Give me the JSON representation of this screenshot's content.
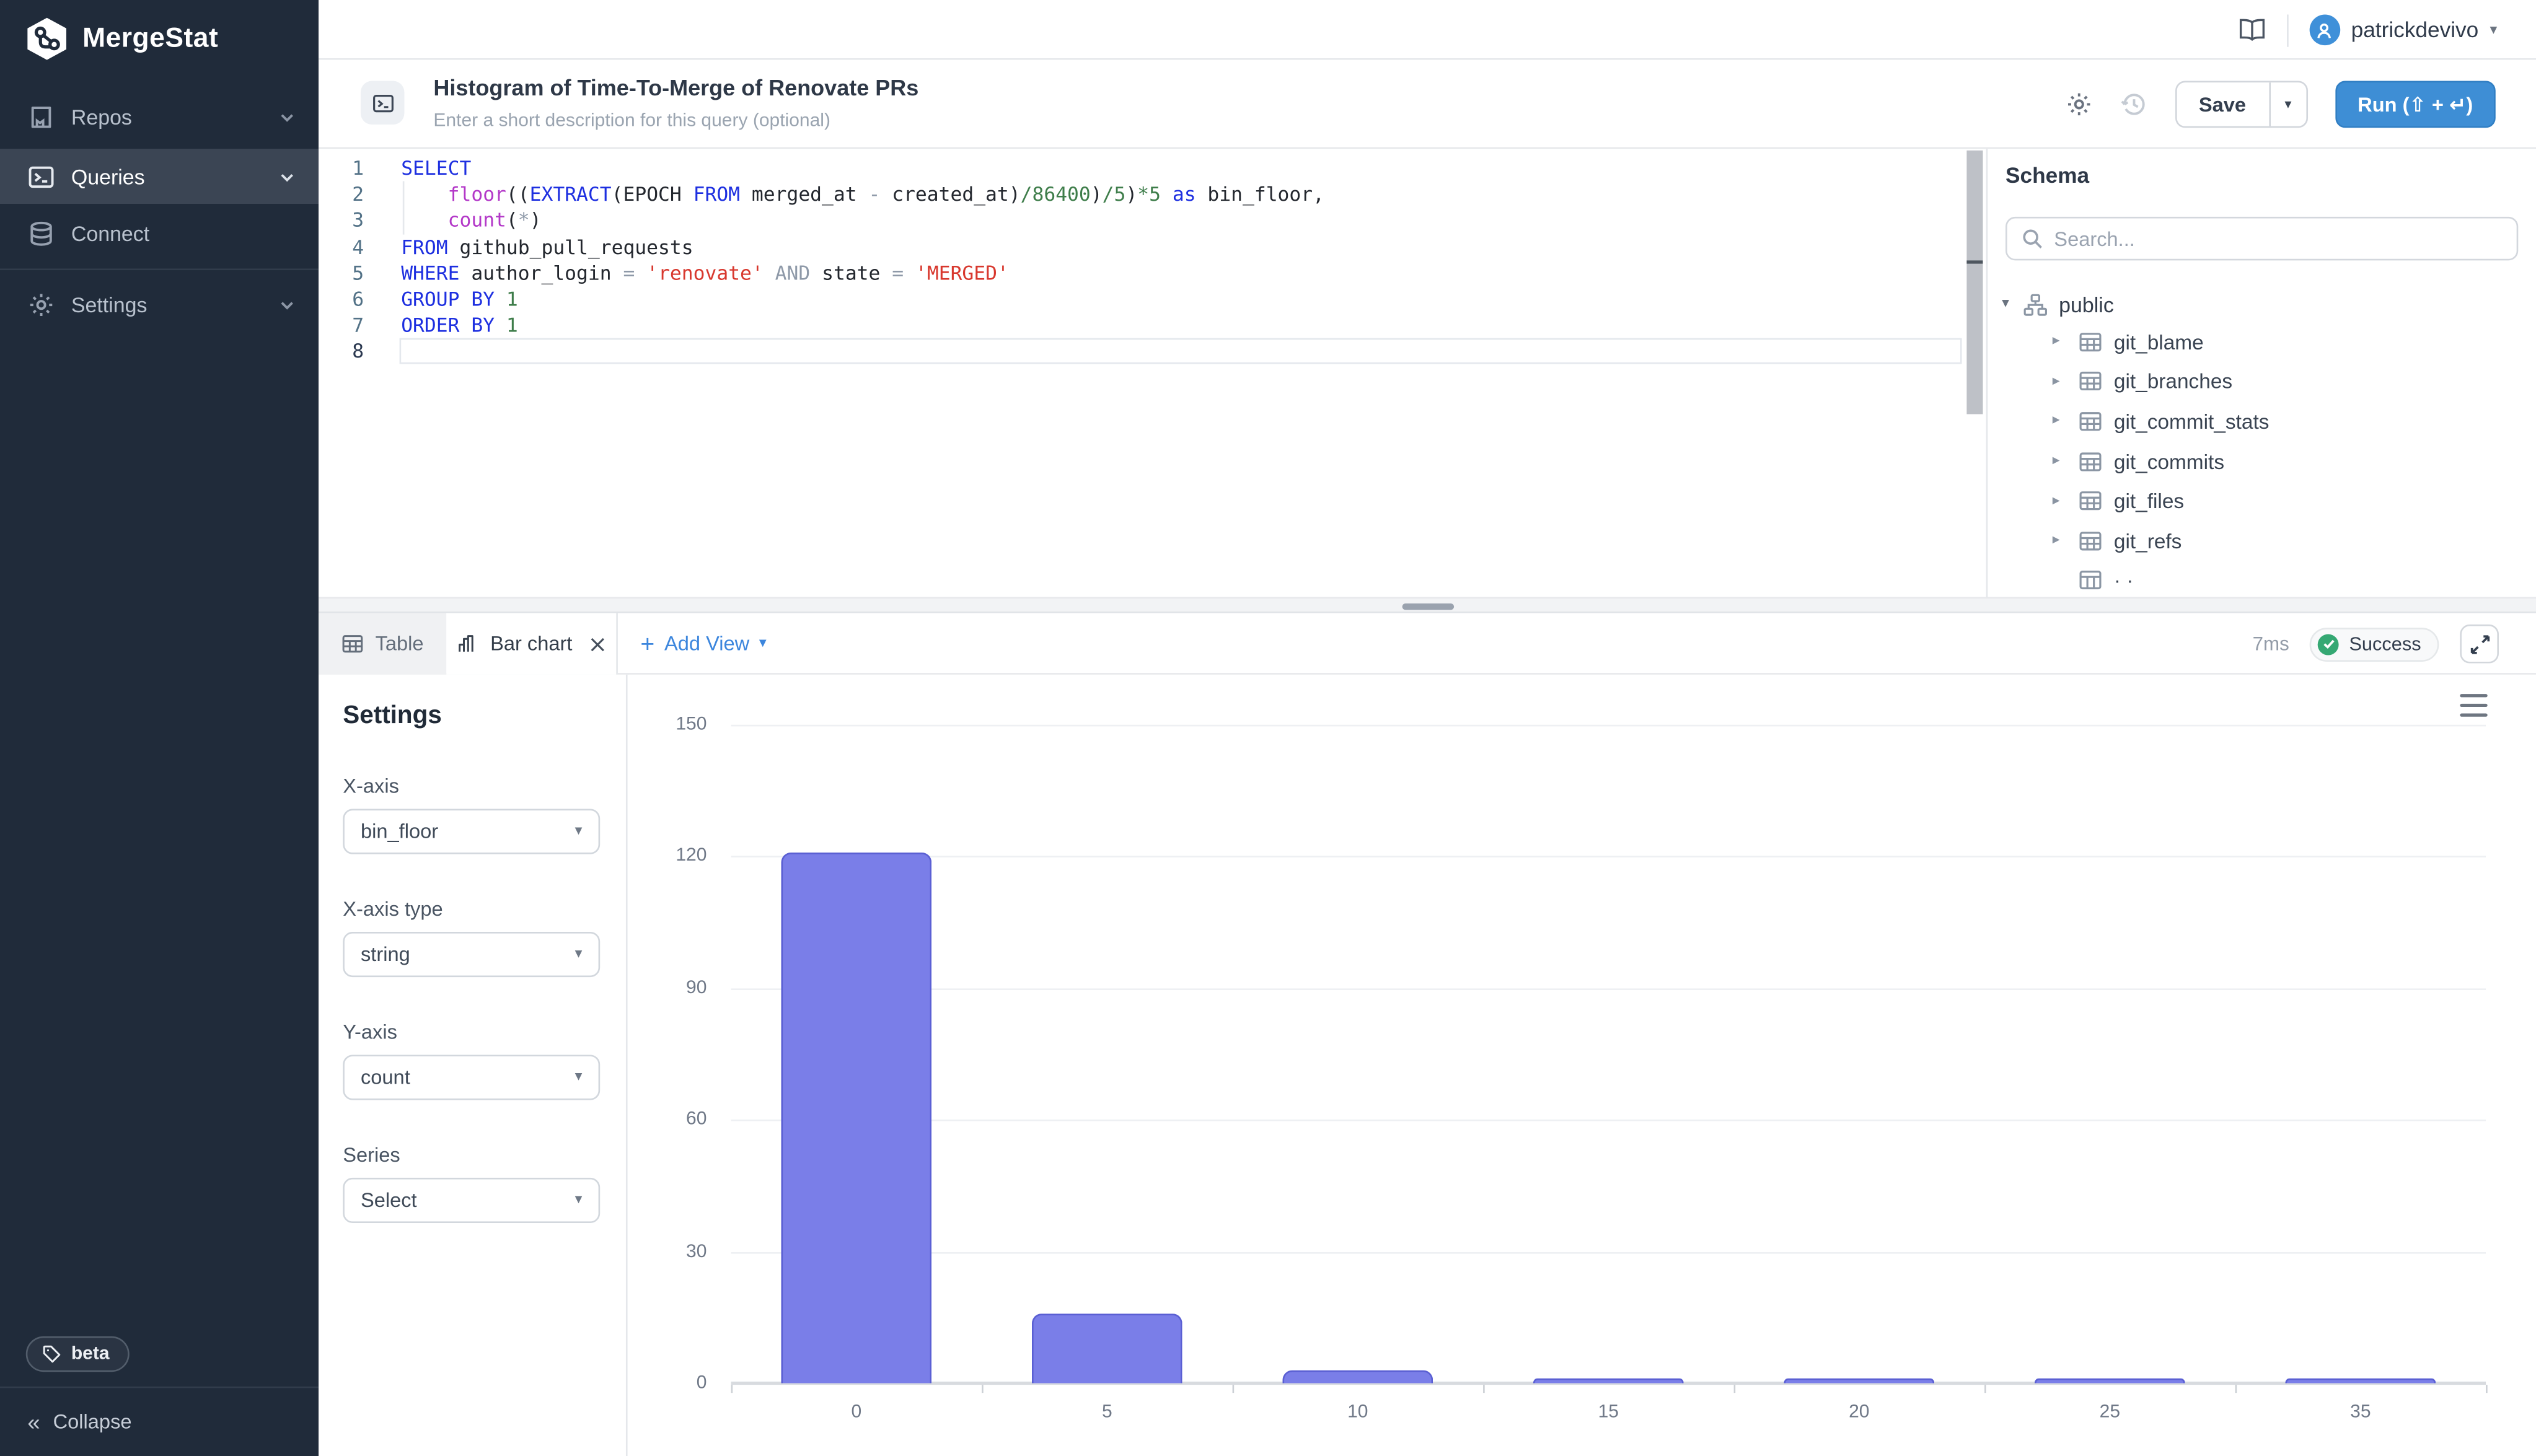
{
  "app": {
    "name": "MergeStat"
  },
  "sidebar": {
    "items": [
      {
        "label": "Repos",
        "icon": "repo-book-icon",
        "expandable": true,
        "active": false
      },
      {
        "label": "Queries",
        "icon": "terminal-icon",
        "expandable": true,
        "active": true
      },
      {
        "label": "Connect",
        "icon": "database-icon",
        "expandable": false,
        "active": false
      },
      {
        "label": "Settings",
        "icon": "gear-icon",
        "expandable": true,
        "active": false
      }
    ],
    "beta_label": "beta",
    "collapse_label": "Collapse",
    "collapse_glyph": "«"
  },
  "topbar": {
    "user_name": "patrickdevivo"
  },
  "query_header": {
    "title": "Histogram of Time-To-Merge of Renovate PRs",
    "description_placeholder": "Enter a short description for this query (optional)",
    "save_label": "Save",
    "run_label": "Run (⇧ + ↵)"
  },
  "editor": {
    "lines": [
      {
        "tokens": [
          {
            "c": "kw",
            "t": "SELECT"
          }
        ]
      },
      {
        "tokens": [
          {
            "c": "plain",
            "t": "    "
          },
          {
            "c": "fn",
            "t": "floor"
          },
          {
            "c": "plain",
            "t": "(("
          },
          {
            "c": "kw",
            "t": "EXTRACT"
          },
          {
            "c": "plain",
            "t": "(EPOCH "
          },
          {
            "c": "kw",
            "t": "FROM"
          },
          {
            "c": "plain",
            "t": " merged_at "
          },
          {
            "c": "op",
            "t": "-"
          },
          {
            "c": "plain",
            "t": " created_at)"
          },
          {
            "c": "num",
            "t": "/86400"
          },
          {
            "c": "plain",
            "t": ")"
          },
          {
            "c": "num",
            "t": "/5"
          },
          {
            "c": "plain",
            "t": ")"
          },
          {
            "c": "num",
            "t": "*5"
          },
          {
            "c": "plain",
            "t": " "
          },
          {
            "c": "kw",
            "t": "as"
          },
          {
            "c": "plain",
            "t": " bin_floor,"
          }
        ]
      },
      {
        "tokens": [
          {
            "c": "plain",
            "t": "    "
          },
          {
            "c": "fn",
            "t": "count"
          },
          {
            "c": "plain",
            "t": "("
          },
          {
            "c": "op",
            "t": "*"
          },
          {
            "c": "plain",
            "t": ")"
          }
        ]
      },
      {
        "tokens": [
          {
            "c": "kw",
            "t": "FROM"
          },
          {
            "c": "plain",
            "t": " github_pull_requests"
          }
        ]
      },
      {
        "tokens": [
          {
            "c": "kw",
            "t": "WHERE"
          },
          {
            "c": "plain",
            "t": " author_login "
          },
          {
            "c": "op",
            "t": "="
          },
          {
            "c": "plain",
            "t": " "
          },
          {
            "c": "str",
            "t": "'renovate'"
          },
          {
            "c": "plain",
            "t": " "
          },
          {
            "c": "op",
            "t": "AND"
          },
          {
            "c": "plain",
            "t": " state "
          },
          {
            "c": "op",
            "t": "="
          },
          {
            "c": "plain",
            "t": " "
          },
          {
            "c": "str",
            "t": "'MERGED'"
          }
        ]
      },
      {
        "tokens": [
          {
            "c": "kw",
            "t": "GROUP BY"
          },
          {
            "c": "plain",
            "t": " "
          },
          {
            "c": "num",
            "t": "1"
          }
        ]
      },
      {
        "tokens": [
          {
            "c": "kw",
            "t": "ORDER BY"
          },
          {
            "c": "plain",
            "t": " "
          },
          {
            "c": "num",
            "t": "1"
          }
        ]
      },
      {
        "tokens": [],
        "active": true
      }
    ]
  },
  "schema": {
    "title": "Schema",
    "search_placeholder": "Search...",
    "root_label": "public",
    "tables": [
      "git_blame",
      "git_branches",
      "git_commit_stats",
      "git_commits",
      "git_files",
      "git_refs"
    ],
    "clipped_row": true
  },
  "results": {
    "tab_table": "Table",
    "tab_bar_chart": "Bar chart",
    "add_view_label": "Add View",
    "duration": "7ms",
    "status": "Success"
  },
  "settings_panel": {
    "title": "Settings",
    "fields": [
      {
        "label": "X-axis",
        "value": "bin_floor"
      },
      {
        "label": "X-axis type",
        "value": "string"
      },
      {
        "label": "Y-axis",
        "value": "count"
      },
      {
        "label": "Series",
        "value": "Select"
      }
    ]
  },
  "chart_data": {
    "type": "bar",
    "categories": [
      "0",
      "5",
      "10",
      "15",
      "20",
      "25",
      "35"
    ],
    "values": [
      121,
      16,
      3,
      1,
      1,
      1,
      1
    ],
    "title": "",
    "xlabel": "",
    "ylabel": "",
    "ylim": [
      0,
      150
    ],
    "yticks": [
      0,
      30,
      60,
      90,
      120,
      150
    ],
    "grid": true,
    "legend_position": "none",
    "bar_color": "#7A7EE8",
    "bar_border_color": "#5A5FD3"
  },
  "colors": {
    "sidebar_bg": "#202B3A",
    "sidebar_active_bg": "#3B4554",
    "accent_blue": "#3E8ED5",
    "link_blue": "#3C86DD",
    "success_green": "#35A873",
    "bar_purple": "#7A7EE8"
  },
  "icons": {
    "logo": "hexagon-network",
    "repos": "book-with-bookmark",
    "queries": "terminal-window",
    "connect": "database-cylinder",
    "settings": "gear",
    "beta": "tag",
    "docs": "open-book",
    "user": "person-circle",
    "history": "clock-counterclockwise",
    "search": "magnifier",
    "schema_root": "sitemap",
    "table": "grid-table",
    "bar_chart": "bar-chart",
    "close": "x",
    "expand": "diagonal-arrows",
    "chart_menu": "hamburger"
  }
}
